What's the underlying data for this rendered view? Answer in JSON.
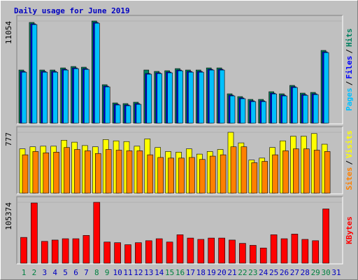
{
  "chart_data": [
    {
      "type": "bar",
      "title": "Daily usage for June 2019",
      "label_separator": "/",
      "ylim": [
        0,
        11054
      ],
      "yticks": [
        11054
      ],
      "series": [
        {
          "name": "Hits",
          "color": "#008060",
          "values": [
            5753,
            10901,
            5753,
            5753,
            5980,
            6132,
            6056,
            11054,
            4164,
            2195,
            2120,
            2271,
            5753,
            5602,
            5678,
            5905,
            5753,
            5753,
            5980,
            5980,
            3179,
            2877,
            2574,
            2574,
            3407,
            3179,
            4088,
            3255,
            3331,
            7873,
            0
          ]
        },
        {
          "name": "Files",
          "color": "#0000ff",
          "values": [
            5600,
            10750,
            5600,
            5600,
            5830,
            5980,
            5900,
            10900,
            4010,
            2050,
            1970,
            2120,
            5375,
            5450,
            5530,
            5750,
            5600,
            5600,
            5830,
            5830,
            3030,
            2730,
            2420,
            2420,
            3250,
            3030,
            3940,
            3100,
            3180,
            7720,
            0
          ]
        },
        {
          "name": "Pages",
          "color": "#00c0ff",
          "values": [
            5520,
            10670,
            5520,
            5520,
            5750,
            5900,
            5820,
            10820,
            3930,
            1970,
            1890,
            2040,
            5300,
            5370,
            5450,
            5670,
            5520,
            5520,
            5750,
            5750,
            2950,
            2650,
            2340,
            2340,
            3170,
            2950,
            3860,
            3020,
            3100,
            7640,
            0
          ]
        }
      ]
    },
    {
      "type": "bar",
      "label_separator": "/",
      "ylim": [
        0,
        777
      ],
      "yticks": [
        777
      ],
      "series": [
        {
          "name": "Visits",
          "color": "#ffff00",
          "values": [
            566,
            592,
            600,
            600,
            676,
            651,
            608,
            592,
            684,
            668,
            659,
            600,
            693,
            583,
            532,
            524,
            566,
            499,
            532,
            558,
            777,
            642,
            423,
            448,
            583,
            668,
            727,
            727,
            761,
            625,
            0
          ]
        },
        {
          "name": "Sites",
          "color": "#ff8000",
          "values": [
            490,
            532,
            515,
            524,
            583,
            558,
            541,
            507,
            558,
            549,
            541,
            541,
            490,
            456,
            448,
            448,
            456,
            431,
            473,
            490,
            592,
            592,
            389,
            406,
            490,
            541,
            566,
            566,
            549,
            532,
            0
          ]
        }
      ]
    },
    {
      "type": "bar",
      "ylim": [
        0,
        105374
      ],
      "yticks": [
        105374
      ],
      "categories": [
        "1",
        "2",
        "3",
        "4",
        "5",
        "6",
        "7",
        "8",
        "9",
        "10",
        "11",
        "12",
        "13",
        "14",
        "15",
        "16",
        "17",
        "18",
        "19",
        "20",
        "21",
        "22",
        "23",
        "24",
        "25",
        "26",
        "27",
        "28",
        "29",
        "30",
        "31"
      ],
      "category_colors": [
        "#008040",
        "#008040",
        "#0000c0",
        "#0000c0",
        "#0000c0",
        "#0000c0",
        "#0000c0",
        "#008040",
        "#008040",
        "#0000c0",
        "#0000c0",
        "#0000c0",
        "#0000c0",
        "#0000c0",
        "#008040",
        "#008040",
        "#0000c0",
        "#0000c0",
        "#0000c0",
        "#0000c0",
        "#0000c0",
        "#008040",
        "#008040",
        "#0000c0",
        "#0000c0",
        "#0000c0",
        "#0000c0",
        "#0000c0",
        "#008040",
        "#008040",
        "#0000c0"
      ],
      "series": [
        {
          "name": "KBytes",
          "color": "#ff0000",
          "values": [
            44655,
            104195,
            37785,
            40075,
            42365,
            42365,
            48090,
            105374,
            36640,
            35495,
            32060,
            35495,
            38930,
            42365,
            36640,
            49235,
            43510,
            41220,
            43510,
            43510,
            40075,
            34350,
            30915,
            26335,
            49235,
            42365,
            50380,
            41220,
            38930,
            93890,
            0
          ]
        }
      ]
    }
  ]
}
